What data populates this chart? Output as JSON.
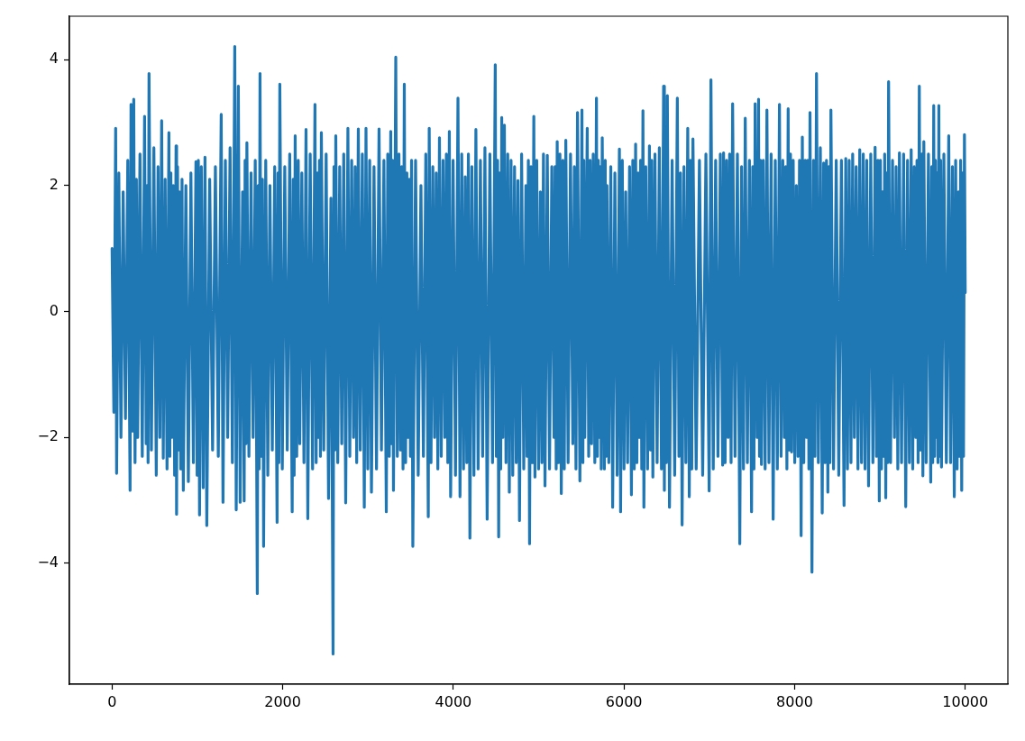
{
  "chart_data": {
    "type": "line",
    "xlim": [
      -500,
      10499
    ],
    "xticks": [
      0,
      2000,
      4000,
      6000,
      8000,
      10000
    ],
    "ylim": [
      -5.92,
      4.69
    ],
    "yticks": [
      {
        "value": -4,
        "label": "−4"
      },
      {
        "value": -2,
        "label": "−2"
      },
      0,
      2,
      4
    ],
    "x": [
      0,
      21,
      42,
      53,
      79,
      104,
      130,
      157,
      184,
      211,
      222,
      240,
      254,
      269,
      285,
      300,
      327,
      354,
      381,
      400,
      411,
      422,
      433,
      461,
      490,
      518,
      539,
      560,
      581,
      600,
      622,
      644,
      666,
      677,
      689,
      700,
      717,
      733,
      750,
      756,
      767,
      779,
      790,
      805,
      820,
      835,
      865,
      894,
      924,
      953,
      983,
      997,
      1011,
      1025,
      1046,
      1068,
      1089,
      1110,
      1144,
      1178,
      1211,
      1245,
      1279,
      1300,
      1328,
      1355,
      1383,
      1410,
      1438,
      1455,
      1480,
      1501,
      1530,
      1548,
      1559,
      1569,
      1580,
      1604,
      1629,
      1653,
      1678,
      1702,
      1713,
      1723,
      1734,
      1748,
      1762,
      1776,
      1801,
      1825,
      1850,
      1878,
      1906,
      1934,
      1945,
      1955,
      1966,
      1995,
      2024,
      2053,
      2082,
      2111,
      2123,
      2134,
      2146,
      2164,
      2182,
      2200,
      2224,
      2249,
      2273,
      2294,
      2322,
      2350,
      2378,
      2392,
      2406,
      2420,
      2431,
      2442,
      2453,
      2481,
      2509,
      2537,
      2565,
      2590,
      2601,
      2611,
      2622,
      2645,
      2668,
      2692,
      2715,
      2738,
      2764,
      2786,
      2808,
      2830,
      2849,
      2867,
      2886,
      2909,
      2933,
      2956,
      2976,
      2997,
      3019,
      3040,
      3070,
      3099,
      3129,
      3157,
      3186,
      3214,
      3231,
      3249,
      3266,
      3277,
      3287,
      3298,
      3325,
      3343,
      3362,
      3380,
      3395,
      3410,
      3425,
      3440,
      3455,
      3470,
      3483,
      3497,
      3510,
      3525,
      3557,
      3588,
      3620,
      3649,
      3677,
      3706,
      3717,
      3738,
      3759,
      3780,
      3799,
      3818,
      3837,
      3858,
      3879,
      3900,
      3918,
      3935,
      3953,
      3968,
      3997,
      4025,
      4054,
      4078,
      4098,
      4119,
      4139,
      4157,
      4176,
      4194,
      4217,
      4241,
      4264,
      4290,
      4317,
      4343,
      4370,
      4396,
      4428,
      4459,
      4491,
      4504,
      4518,
      4531,
      4543,
      4555,
      4567,
      4580,
      4598,
      4617,
      4637,
      4656,
      4676,
      4696,
      4717,
      4737,
      4757,
      4775,
      4800,
      4825,
      4850,
      4864,
      4879,
      4893,
      4910,
      4926,
      4943,
      4956,
      4977,
      4999,
      5020,
      5038,
      5056,
      5074,
      5101,
      5127,
      5154,
      5180,
      5192,
      5205,
      5217,
      5233,
      5249,
      5265,
      5283,
      5300,
      5318,
      5345,
      5373,
      5400,
      5418,
      5437,
      5455,
      5483,
      5507,
      5518,
      5529,
      5540,
      5569,
      5586,
      5603,
      5620,
      5639,
      5658,
      5677,
      5688,
      5699,
      5710,
      5722,
      5733,
      5745,
      5770,
      5780,
      5790,
      5800,
      5822,
      5845,
      5867,
      5893,
      5920,
      5946,
      5960,
      5980,
      6000,
      6020,
      6042,
      6065,
      6087,
      6103,
      6120,
      6136,
      6151,
      6165,
      6180,
      6194,
      6208,
      6222,
      6233,
      6255,
      6276,
      6298,
      6311,
      6325,
      6338,
      6363,
      6388,
      6414,
      6439,
      6464,
      6473,
      6485,
      6496,
      6508,
      6533,
      6564,
      6594,
      6625,
      6644,
      6662,
      6681,
      6703,
      6725,
      6747,
      6765,
      6779,
      6794,
      6808,
      6846,
      6884,
      6922,
      6960,
      6998,
      7019,
      7046,
      7074,
      7101,
      7129,
      7156,
      7167,
      7185,
      7202,
      7220,
      7238,
      7255,
      7273,
      7301,
      7329,
      7357,
      7378,
      7400,
      7421,
      7446,
      7470,
      7495,
      7509,
      7523,
      7537,
      7560,
      7577,
      7588,
      7600,
      7611,
      7632,
      7654,
      7675,
      7699,
      7724,
      7748,
      7773,
      7797,
      7822,
      7841,
      7861,
      7880,
      7895,
      7909,
      7924,
      7937,
      7951,
      7964,
      7983,
      8001,
      8020,
      8039,
      8057,
      8076,
      8090,
      8107,
      8123,
      8140,
      8153,
      8167,
      8180,
      8203,
      8221,
      8238,
      8256,
      8278,
      8301,
      8323,
      8340,
      8356,
      8373,
      8389,
      8401,
      8413,
      8425,
      8456,
      8487,
      8517,
      8548,
      8579,
      8599,
      8619,
      8639,
      8660,
      8680,
      8700,
      8721,
      8742,
      8763,
      8784,
      8804,
      8825,
      8845,
      8866,
      8892,
      8917,
      8943,
      8959,
      8976,
      8992,
      9005,
      9017,
      9030,
      9043,
      9055,
      9068,
      9079,
      9090,
      9101,
      9124,
      9147,
      9170,
      9189,
      9209,
      9228,
      9253,
      9277,
      9302,
      9323,
      9345,
      9366,
      9384,
      9402,
      9420,
      9434,
      9447,
      9461,
      9475,
      9489,
      9503,
      9514,
      9541,
      9568,
      9595,
      9607,
      9618,
      9630,
      9640,
      9650,
      9660,
      9670,
      9680,
      9690,
      9700,
      9711,
      9721,
      9749,
      9778,
      9806,
      9828,
      9849,
      9871,
      9887,
      9904,
      9920,
      9933,
      9945,
      9958,
      9969,
      9979,
      9990,
      9999
    ],
    "series": [
      {
        "color": "#1f77b4",
        "values": [
          1.0,
          -1.6,
          2.91,
          -2.57,
          2.2,
          -2.0,
          1.9,
          -1.7,
          2.4,
          -2.84,
          3.29,
          -1.9,
          3.37,
          -2.4,
          2.1,
          -2.0,
          2.5,
          -2.3,
          3.1,
          -2.1,
          2.0,
          -2.4,
          3.78,
          -2.2,
          2.6,
          -2.6,
          2.3,
          -2.0,
          3.03,
          -2.33,
          2.1,
          -2.5,
          2.84,
          -2.3,
          2.2,
          -2.0,
          2.0,
          -2.6,
          2.63,
          -3.22,
          2.3,
          -2.2,
          1.9,
          -2.5,
          2.1,
          -2.84,
          2.0,
          -2.7,
          2.2,
          -2.4,
          2.38,
          -2.6,
          2.4,
          -3.23,
          2.3,
          -2.8,
          2.45,
          -3.4,
          2.1,
          -2.2,
          2.3,
          -2.3,
          3.13,
          -3.03,
          2.4,
          -2.0,
          2.6,
          -2.4,
          4.21,
          -3.15,
          3.58,
          -3.03,
          1.9,
          -3.01,
          2.4,
          -2.1,
          2.68,
          -2.3,
          2.2,
          -2.0,
          2.4,
          -4.48,
          2.0,
          -2.5,
          3.78,
          -2.3,
          2.1,
          -3.73,
          2.4,
          -2.6,
          2.0,
          -2.2,
          2.3,
          -3.35,
          2.2,
          -2.4,
          3.61,
          -2.5,
          2.3,
          -2.2,
          2.5,
          -3.18,
          2.1,
          -2.6,
          2.79,
          -2.3,
          2.4,
          -2.1,
          2.2,
          -2.4,
          2.89,
          -3.29,
          2.5,
          -2.5,
          3.29,
          -2.4,
          2.2,
          -2.0,
          2.4,
          -2.3,
          2.84,
          -2.2,
          2.5,
          -2.97,
          1.8,
          -5.44,
          2.3,
          -2.2,
          2.79,
          -2.4,
          2.3,
          -2.1,
          2.5,
          -3.04,
          2.91,
          -2.3,
          2.4,
          -2.0,
          2.3,
          -2.4,
          2.9,
          -2.2,
          2.5,
          -3.11,
          2.91,
          -2.5,
          2.4,
          -2.87,
          2.3,
          -2.5,
          2.9,
          -2.2,
          2.4,
          -3.18,
          2.5,
          -2.3,
          2.86,
          -2.1,
          2.4,
          -2.84,
          4.04,
          -2.3,
          2.5,
          -2.2,
          2.3,
          -2.5,
          3.61,
          -2.4,
          2.2,
          -2.0,
          2.1,
          -2.3,
          2.4,
          -3.73,
          2.4,
          -2.6,
          2.0,
          -2.3,
          2.5,
          -3.26,
          2.91,
          -2.4,
          2.3,
          -2.0,
          2.2,
          -2.5,
          2.76,
          -2.3,
          2.4,
          -2.0,
          2.5,
          -2.4,
          2.86,
          -2.94,
          2.4,
          -2.6,
          3.39,
          -2.94,
          2.5,
          -2.5,
          2.14,
          -2.4,
          2.5,
          -3.6,
          2.3,
          -2.6,
          2.89,
          -2.5,
          2.4,
          -2.3,
          2.6,
          -3.3,
          2.5,
          -2.4,
          3.92,
          -2.3,
          2.4,
          -3.58,
          2.2,
          -2.5,
          3.08,
          -2.0,
          2.96,
          -2.4,
          2.5,
          -2.87,
          2.4,
          -2.6,
          2.3,
          -2.4,
          2.08,
          -3.32,
          2.5,
          -2.5,
          2.0,
          -2.3,
          2.4,
          -3.69,
          2.3,
          -2.4,
          3.1,
          -2.63,
          2.4,
          -2.5,
          1.9,
          -2.4,
          2.5,
          -2.77,
          2.48,
          -2.5,
          2.3,
          -2.0,
          2.3,
          -2.5,
          2.7,
          -2.4,
          2.5,
          -2.89,
          2.4,
          -2.5,
          2.72,
          -2.4,
          2.5,
          -2.1,
          2.3,
          -2.5,
          3.16,
          -2.69,
          3.2,
          -2.4,
          2.4,
          -2.0,
          2.91,
          -2.3,
          2.4,
          -2.1,
          2.5,
          -2.4,
          3.39,
          -2.3,
          2.4,
          -2.0,
          2.3,
          -2.5,
          2.76,
          -2.5,
          2.4,
          -2.3,
          2.0,
          -2.4,
          2.3,
          -3.11,
          2.2,
          -2.6,
          2.58,
          -3.18,
          2.4,
          -2.5,
          1.9,
          -2.4,
          2.3,
          -2.91,
          2.4,
          -2.5,
          2.66,
          -2.4,
          2.2,
          -2.0,
          2.4,
          -2.5,
          3.19,
          -3.11,
          2.3,
          -2.5,
          2.63,
          -2.2,
          2.4,
          -2.63,
          2.5,
          -2.4,
          2.6,
          -2.5,
          3.58,
          -2.84,
          2.3,
          -2.4,
          3.43,
          -3.11,
          2.4,
          -2.6,
          3.39,
          -2.3,
          2.2,
          -3.39,
          2.3,
          -2.4,
          2.91,
          -2.94,
          2.4,
          -2.5,
          2.74,
          -2.5,
          2.4,
          -2.6,
          2.5,
          -2.85,
          3.68,
          -2.5,
          2.4,
          -2.3,
          2.5,
          -2.44,
          2.52,
          -2.4,
          2.4,
          -2.0,
          2.5,
          -2.4,
          3.3,
          -2.3,
          2.5,
          -3.69,
          2.3,
          -2.5,
          3.07,
          -2.4,
          2.4,
          -3.18,
          2.3,
          -2.5,
          3.3,
          -2.0,
          3.37,
          -2.3,
          2.4,
          -2.43,
          2.4,
          -2.5,
          3.2,
          -2.4,
          2.5,
          -3.3,
          2.4,
          -2.5,
          3.29,
          -2.3,
          2.4,
          -2.0,
          2.3,
          -2.5,
          3.22,
          -2.2,
          2.5,
          -2.23,
          2.4,
          -2.4,
          2.0,
          -2.3,
          2.4,
          -3.56,
          2.77,
          -2.4,
          2.4,
          -2.0,
          2.4,
          -2.5,
          3.16,
          -4.14,
          2.4,
          -2.3,
          3.78,
          -2.4,
          2.6,
          -3.2,
          2.36,
          -2.4,
          2.4,
          -2.87,
          2.3,
          -2.4,
          3.2,
          -2.5,
          2.4,
          -2.6,
          2.4,
          -3.08,
          2.43,
          -2.5,
          2.4,
          -2.4,
          2.5,
          -2.0,
          2.3,
          -2.5,
          2.57,
          -2.4,
          2.5,
          -2.5,
          2.4,
          -2.77,
          2.5,
          -2.4,
          2.61,
          -2.3,
          2.4,
          -3.01,
          2.4,
          -2.5,
          1.9,
          -2.3,
          2.5,
          -2.96,
          2.2,
          -2.4,
          3.65,
          -2.4,
          2.4,
          -2.0,
          2.3,
          -2.5,
          2.52,
          -2.4,
          2.5,
          -3.1,
          2.4,
          -2.4,
          2.57,
          -2.5,
          2.3,
          -2.0,
          2.4,
          -2.4,
          3.58,
          -2.2,
          2.5,
          -2.61,
          2.7,
          -2.4,
          2.5,
          -2.71,
          2.3,
          -2.4,
          3.27,
          -2.3,
          2.4,
          -2.0,
          2.2,
          -2.4,
          3.27,
          -2.3,
          2.4,
          -2.47,
          2.5,
          -2.4,
          2.79,
          -2.4,
          2.3,
          -2.94,
          2.4,
          -2.5,
          1.9,
          -2.3,
          2.4,
          -2.84,
          2.2,
          -2.3,
          2.81,
          0.3
        ]
      }
    ]
  }
}
